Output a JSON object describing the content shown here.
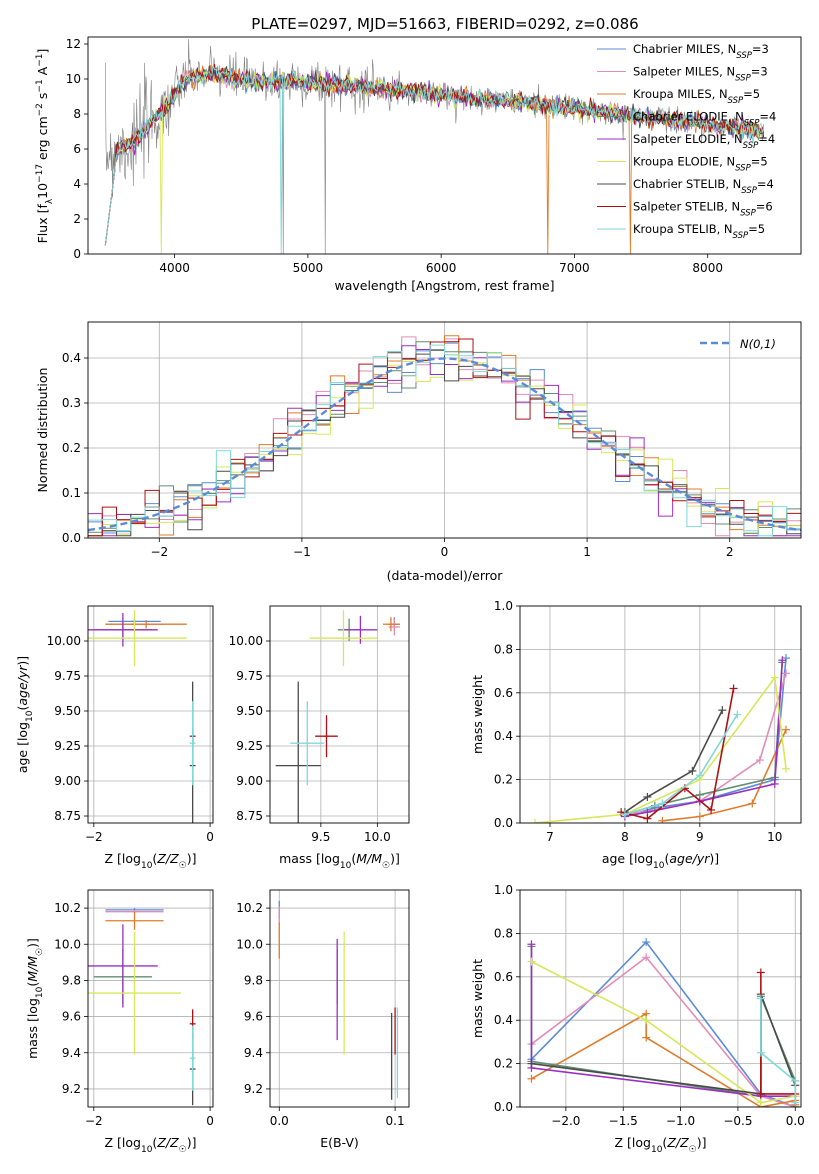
{
  "figure": {
    "title": "PLATE=0297, MJD=51663, FIBERID=0292, z=0.086"
  },
  "legend_entries": [
    {
      "name": "Chabrier MILES, N_SSP=3",
      "base": "Chabrier MILES, N",
      "sub": "SSP",
      "tail": "=3",
      "color": "#5b8bd8"
    },
    {
      "name": "Salpeter MILES, N_SSP=3",
      "base": "Salpeter MILES, N",
      "sub": "SSP",
      "tail": "=3",
      "color": "#e38cb8"
    },
    {
      "name": "Kroupa MILES, N_SSP=5",
      "base": "Kroupa MILES, N",
      "sub": "SSP",
      "tail": "=5",
      "color": "#e07b2a"
    },
    {
      "name": "Chabrier ELODIE, N_SSP=4",
      "base": "Chabrier ELODIE, N",
      "sub": "SSP",
      "tail": "=4",
      "color": "#5f8f6f"
    },
    {
      "name": "Salpeter ELODIE, N_SSP=4",
      "base": "Salpeter ELODIE, N",
      "sub": "SSP",
      "tail": "=4",
      "color": "#9b30c0"
    },
    {
      "name": "Kroupa ELODIE, N_SSP=5",
      "base": "Kroupa ELODIE, N",
      "sub": "SSP",
      "tail": "=5",
      "color": "#d6e85a"
    },
    {
      "name": "Chabrier STELIB, N_SSP=4",
      "base": "Chabrier STELIB, N",
      "sub": "SSP",
      "tail": "=4",
      "color": "#4a4a4a"
    },
    {
      "name": "Salpeter STELIB, N_SSP=6",
      "base": "Salpeter STELIB, N",
      "sub": "SSP",
      "tail": "=6",
      "color": "#b01010"
    },
    {
      "name": "Kroupa STELIB, N_SSP=5",
      "base": "Kroupa STELIB, N",
      "sub": "SSP",
      "tail": "=5",
      "color": "#7fd8d8"
    }
  ],
  "chart_data": [
    {
      "id": "spectrum",
      "type": "line",
      "xlabel": "wavelength [Angstrom, rest frame]",
      "ylabel": "Flux [f_λ 10^-17 erg cm^-2 s^-1 A^-1]",
      "xlim": [
        3350,
        8700
      ],
      "ylim": [
        0,
        12.4
      ],
      "xticks": [
        4000,
        5000,
        6000,
        7000,
        8000
      ],
      "yticks": [
        0,
        2,
        4,
        6,
        8,
        10,
        12
      ],
      "legend": "right",
      "data_color": "#808080",
      "series_anchor_x": [
        3500,
        3700,
        3900,
        4100,
        4300,
        4600,
        4900,
        5200,
        5500,
        5800,
        6100,
        6400,
        6700,
        7000,
        7300,
        7600,
        7900,
        8200,
        8400
      ],
      "series_anchor_y": [
        5.8,
        6.4,
        8.2,
        10.1,
        10.3,
        9.8,
        9.9,
        9.7,
        9.5,
        9.3,
        9.0,
        8.8,
        8.6,
        8.3,
        8.0,
        7.8,
        7.5,
        7.2,
        7.0
      ]
    },
    {
      "id": "residual_hist",
      "type": "bar",
      "xlabel": "(data-model)/error",
      "ylabel": "Normed distribution",
      "xlim": [
        -2.5,
        2.5
      ],
      "ylim": [
        0,
        0.48
      ],
      "xticks": [
        -2,
        -1,
        0,
        1,
        2
      ],
      "yticks": [
        0.0,
        0.1,
        0.2,
        0.3,
        0.4
      ],
      "bin_width": 0.1,
      "bin_start": -2.5,
      "reference": {
        "name": "N(0,1)",
        "color": "#5b8bd8"
      },
      "legend": "upper right"
    },
    {
      "id": "age_vs_Z",
      "type": "scatter",
      "xlabel": "Z [log10(Z/Z☉)]",
      "ylabel": "age [log10(age/yr)]",
      "xlim": [
        -2.1,
        0.05
      ],
      "ylim": [
        8.7,
        10.25
      ],
      "xticks": [
        -2,
        0
      ],
      "yticks": [
        8.75,
        9.0,
        9.25,
        9.5,
        9.75,
        10.0
      ],
      "points": [
        {
          "s": 0,
          "x": -1.3,
          "y": 10.14,
          "ex": 0.45,
          "ey": 0.02
        },
        {
          "s": 1,
          "x": -1.3,
          "y": 10.12,
          "ex": 0.5,
          "ey": 0.03
        },
        {
          "s": 2,
          "x": -1.1,
          "y": 10.12,
          "ex": 0.7,
          "ey": 0.03
        },
        {
          "s": 3,
          "x": -1.5,
          "y": 10.08,
          "ex": 0.5,
          "ey": 0.05
        },
        {
          "s": 4,
          "x": -1.5,
          "y": 10.08,
          "ex": 0.6,
          "ey": 0.12
        },
        {
          "s": 5,
          "x": -1.3,
          "y": 10.02,
          "ex": 0.9,
          "ey": 0.2
        },
        {
          "s": 6,
          "x": -0.3,
          "y": 9.11,
          "ex": 0.05,
          "ey": 0.6
        },
        {
          "s": 7,
          "x": -0.3,
          "y": 9.32,
          "ex": 0.05,
          "ey": 0.05
        },
        {
          "s": 8,
          "x": -0.3,
          "y": 9.27,
          "ex": 0.05,
          "ey": 0.3
        }
      ]
    },
    {
      "id": "age_vs_mass",
      "type": "scatter",
      "xlabel": "mass [log10(M/M☉)]",
      "ylabel": "",
      "xlim": [
        9.05,
        10.28
      ],
      "ylim": [
        8.7,
        10.25
      ],
      "xticks": [
        9.5,
        10.0
      ],
      "yticks": [
        8.75,
        9.0,
        9.25,
        9.5,
        9.75,
        10.0
      ],
      "points": [
        {
          "s": 0,
          "x": 10.15,
          "y": 10.12,
          "ex": 0.05,
          "ey": 0.05
        },
        {
          "s": 1,
          "x": 10.15,
          "y": 10.1,
          "ex": 0.05,
          "ey": 0.06
        },
        {
          "s": 2,
          "x": 10.12,
          "y": 10.12,
          "ex": 0.07,
          "ey": 0.05
        },
        {
          "s": 3,
          "x": 9.75,
          "y": 10.08,
          "ex": 0.1,
          "ey": 0.08
        },
        {
          "s": 4,
          "x": 9.85,
          "y": 10.08,
          "ex": 0.15,
          "ey": 0.1
        },
        {
          "s": 5,
          "x": 9.7,
          "y": 10.02,
          "ex": 0.3,
          "ey": 0.2
        },
        {
          "s": 6,
          "x": 9.3,
          "y": 9.11,
          "ex": 0.2,
          "ey": 0.6
        },
        {
          "s": 7,
          "x": 9.55,
          "y": 9.32,
          "ex": 0.1,
          "ey": 0.15
        },
        {
          "s": 8,
          "x": 9.38,
          "y": 9.27,
          "ex": 0.15,
          "ey": 0.3
        }
      ]
    },
    {
      "id": "weight_vs_age",
      "type": "line",
      "xlabel": "age [log10(age/yr)]",
      "ylabel": "mass weight",
      "xlim": [
        6.6,
        10.35
      ],
      "ylim": [
        0,
        1.0
      ],
      "xticks": [
        7,
        8,
        9,
        10
      ],
      "yticks": [
        0.0,
        0.2,
        0.4,
        0.6,
        0.8,
        1.0
      ],
      "series": [
        {
          "s": 0,
          "x": [
            8.0,
            8.4,
            9.0,
            10.0,
            10.15
          ],
          "y": [
            0.03,
            0.07,
            0.1,
            0.2,
            0.76
          ]
        },
        {
          "s": 1,
          "x": [
            8.0,
            8.4,
            9.0,
            9.8,
            10.15
          ],
          "y": [
            0.04,
            0.06,
            0.1,
            0.29,
            0.69
          ]
        },
        {
          "s": 2,
          "x": [
            8.5,
            9.0,
            9.7,
            10.15
          ],
          "y": [
            0.01,
            0.03,
            0.09,
            0.43
          ]
        },
        {
          "s": 3,
          "x": [
            8.0,
            8.4,
            9.0,
            10.0,
            10.1
          ],
          "y": [
            0.04,
            0.08,
            0.13,
            0.21,
            0.74
          ]
        },
        {
          "s": 4,
          "x": [
            8.0,
            8.3,
            9.0,
            10.0,
            10.1
          ],
          "y": [
            0.03,
            0.05,
            0.1,
            0.18,
            0.75
          ]
        },
        {
          "s": 5,
          "x": [
            6.8,
            8.0,
            9.0,
            10.0,
            10.15
          ],
          "y": [
            0.0,
            0.04,
            0.2,
            0.67,
            0.25
          ]
        },
        {
          "s": 6,
          "x": [
            8.0,
            8.3,
            8.9,
            9.3
          ],
          "y": [
            0.05,
            0.12,
            0.24,
            0.52
          ]
        },
        {
          "s": 7,
          "x": [
            7.95,
            8.3,
            8.8,
            9.15,
            9.45
          ],
          "y": [
            0.05,
            0.02,
            0.16,
            0.06,
            0.62
          ]
        },
        {
          "s": 8,
          "x": [
            8.0,
            8.5,
            9.0,
            9.5
          ],
          "y": [
            0.04,
            0.09,
            0.22,
            0.5
          ]
        }
      ]
    },
    {
      "id": "mass_vs_Z",
      "type": "scatter",
      "xlabel": "Z [log10(Z/Z☉)]",
      "ylabel": "mass [log10(M/M☉)]",
      "xlim": [
        -2.1,
        0.05
      ],
      "ylim": [
        9.1,
        10.3
      ],
      "xticks": [
        -2,
        0
      ],
      "yticks": [
        9.2,
        9.4,
        9.6,
        9.8,
        10.0,
        10.2
      ],
      "points": [
        {
          "s": 0,
          "x": -1.3,
          "y": 10.19,
          "ex": 0.5,
          "ey": 0.01
        },
        {
          "s": 1,
          "x": -1.3,
          "y": 10.18,
          "ex": 0.5,
          "ey": 0.01
        },
        {
          "s": 2,
          "x": -1.3,
          "y": 10.13,
          "ex": 0.5,
          "ey": 0.05
        },
        {
          "s": 3,
          "x": -1.5,
          "y": 9.82,
          "ex": 0.5,
          "ey": 0.15
        },
        {
          "s": 4,
          "x": -1.5,
          "y": 9.88,
          "ex": 0.6,
          "ey": 0.23
        },
        {
          "s": 5,
          "x": -1.3,
          "y": 9.73,
          "ex": 0.8,
          "ey": 0.34
        },
        {
          "s": 6,
          "x": -0.3,
          "y": 9.31,
          "ex": 0.05,
          "ey": 0.2
        },
        {
          "s": 7,
          "x": -0.3,
          "y": 9.56,
          "ex": 0.05,
          "ey": 0.08
        },
        {
          "s": 8,
          "x": -0.3,
          "y": 9.37,
          "ex": 0.05,
          "ey": 0.18
        }
      ]
    },
    {
      "id": "mass_vs_ebv",
      "type": "scatter",
      "xlabel": "E(B-V)",
      "ylabel": "",
      "xlim": [
        -0.008,
        0.112
      ],
      "ylim": [
        9.1,
        10.3
      ],
      "xticks": [
        0.0,
        0.1
      ],
      "yticks": [
        9.2,
        9.4,
        9.6,
        9.8,
        10.0,
        10.2
      ],
      "points": [
        {
          "s": 0,
          "x": 0.0,
          "y": 10.19,
          "ex": 0,
          "ey": 0.05
        },
        {
          "s": 1,
          "x": 0.0,
          "y": 10.16,
          "ex": 0,
          "ey": 0.05
        },
        {
          "s": 2,
          "x": 0.0,
          "y": 10.02,
          "ex": 0,
          "ey": 0.1
        },
        {
          "s": 3,
          "x": 0.05,
          "y": 9.82,
          "ex": 0,
          "ey": 0.15
        },
        {
          "s": 4,
          "x": 0.05,
          "y": 9.75,
          "ex": 0,
          "ey": 0.28
        },
        {
          "s": 5,
          "x": 0.056,
          "y": 9.73,
          "ex": 0,
          "ey": 0.34
        },
        {
          "s": 6,
          "x": 0.097,
          "y": 9.38,
          "ex": 0,
          "ey": 0.24
        },
        {
          "s": 7,
          "x": 0.1,
          "y": 9.52,
          "ex": 0,
          "ey": 0.13
        },
        {
          "s": 8,
          "x": 0.102,
          "y": 9.4,
          "ex": 0,
          "ey": 0.25
        }
      ]
    },
    {
      "id": "weight_vs_Z",
      "type": "line",
      "xlabel": "Z [log10(Z/Z☉)]",
      "ylabel": "mass weight",
      "xlim": [
        -2.4,
        0.05
      ],
      "ylim": [
        0,
        1.0
      ],
      "xticks": [
        -2.0,
        -1.5,
        -1.0,
        -0.5,
        0.0
      ],
      "yticks": [
        0.0,
        0.2,
        0.4,
        0.6,
        0.8,
        1.0
      ],
      "series": [
        {
          "s": 0,
          "x": [
            -2.3,
            -1.3,
            -0.3,
            0.0
          ],
          "y": [
            0.22,
            0.76,
            0.06,
            0.0
          ]
        },
        {
          "s": 1,
          "x": [
            -2.3,
            -1.3,
            -0.3,
            0.0
          ],
          "y": [
            0.29,
            0.69,
            0.05,
            0.0
          ]
        },
        {
          "s": 2,
          "x": [
            -2.3,
            -1.3,
            -1.3,
            -0.3,
            0.0,
            0.0
          ],
          "y": [
            0.13,
            0.43,
            0.32,
            0.0,
            0.03,
            0.01
          ]
        },
        {
          "s": 3,
          "x": [
            -2.3,
            -2.3,
            -0.3,
            -0.3,
            0.0
          ],
          "y": [
            0.74,
            0.21,
            0.05,
            0.51,
            0.12
          ]
        },
        {
          "s": 4,
          "x": [
            -2.3,
            -2.3,
            -0.3,
            0.0
          ],
          "y": [
            0.75,
            0.18,
            0.05,
            0.05
          ]
        },
        {
          "s": 5,
          "x": [
            -2.3,
            -1.3,
            -0.3,
            0.0
          ],
          "y": [
            0.67,
            0.4,
            0.02,
            0.05
          ]
        },
        {
          "s": 6,
          "x": [
            -2.3,
            -0.3,
            -0.3,
            0.0,
            0.0
          ],
          "y": [
            0.2,
            0.06,
            0.52,
            0.1,
            0.0
          ]
        },
        {
          "s": 7,
          "x": [
            -0.3,
            -0.3,
            0.0
          ],
          "y": [
            0.62,
            0.06,
            0.06
          ]
        },
        {
          "s": 8,
          "x": [
            -0.3,
            -0.3,
            0.0,
            0.0
          ],
          "y": [
            0.5,
            0.25,
            0.12,
            0.02
          ]
        }
      ]
    }
  ]
}
